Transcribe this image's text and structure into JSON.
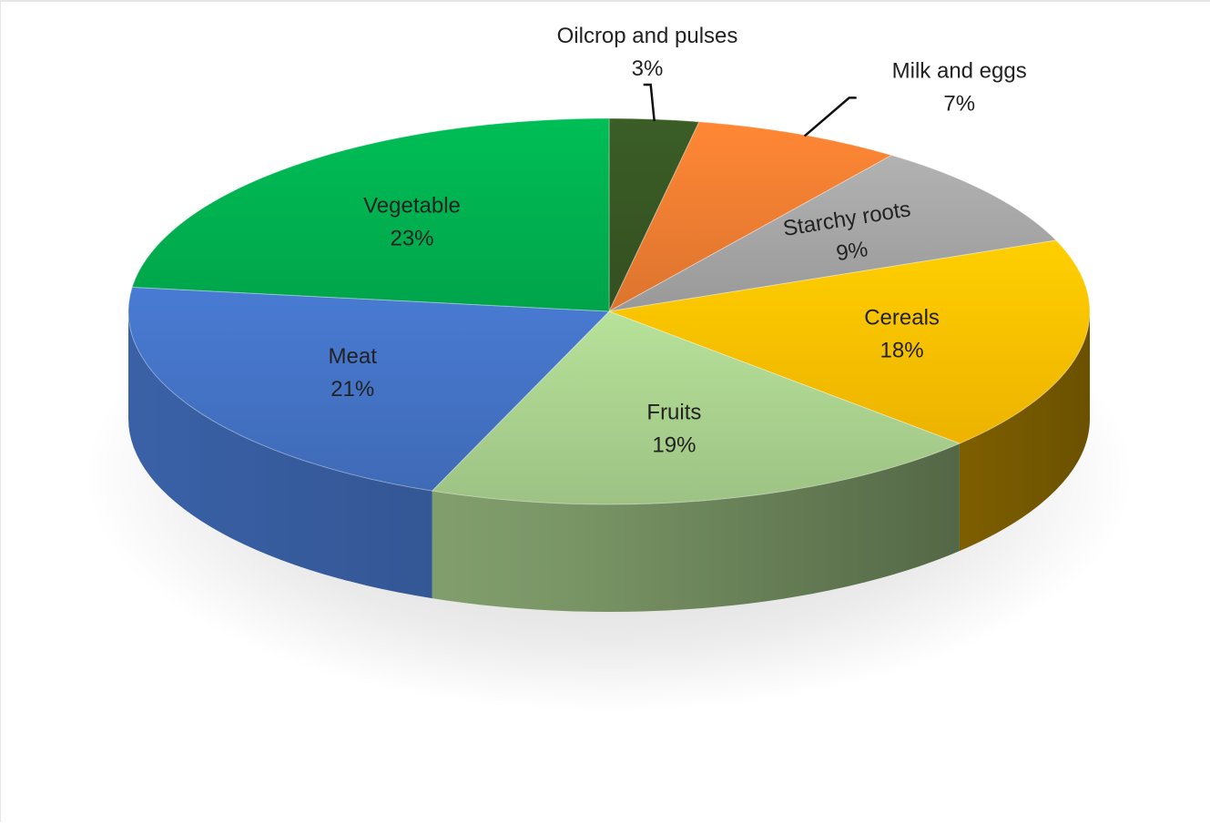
{
  "chart_data": {
    "type": "pie",
    "title": "",
    "unit": "%",
    "slices": [
      {
        "name": "Oilcrop and pulses",
        "value": 3,
        "label": "3%",
        "color": "#375623"
      },
      {
        "name": "Milk and eggs",
        "value": 7,
        "label": "7%",
        "color": "#ED7D31"
      },
      {
        "name": "Starchy roots",
        "value": 9,
        "label": "9%",
        "color": "#A5A5A5"
      },
      {
        "name": "Cereals",
        "value": 18,
        "label": "18%",
        "color": "#FFC000"
      },
      {
        "name": "Fruits",
        "value": 19,
        "label": "19%",
        "color": "#A9D18E"
      },
      {
        "name": "Meat",
        "value": 21,
        "label": "21%",
        "color": "#4472C4"
      },
      {
        "name": "Vegetable",
        "value": 23,
        "label": "23%",
        "color": "#00B050"
      }
    ],
    "legend": "none",
    "style": "3d-exploded-none"
  }
}
